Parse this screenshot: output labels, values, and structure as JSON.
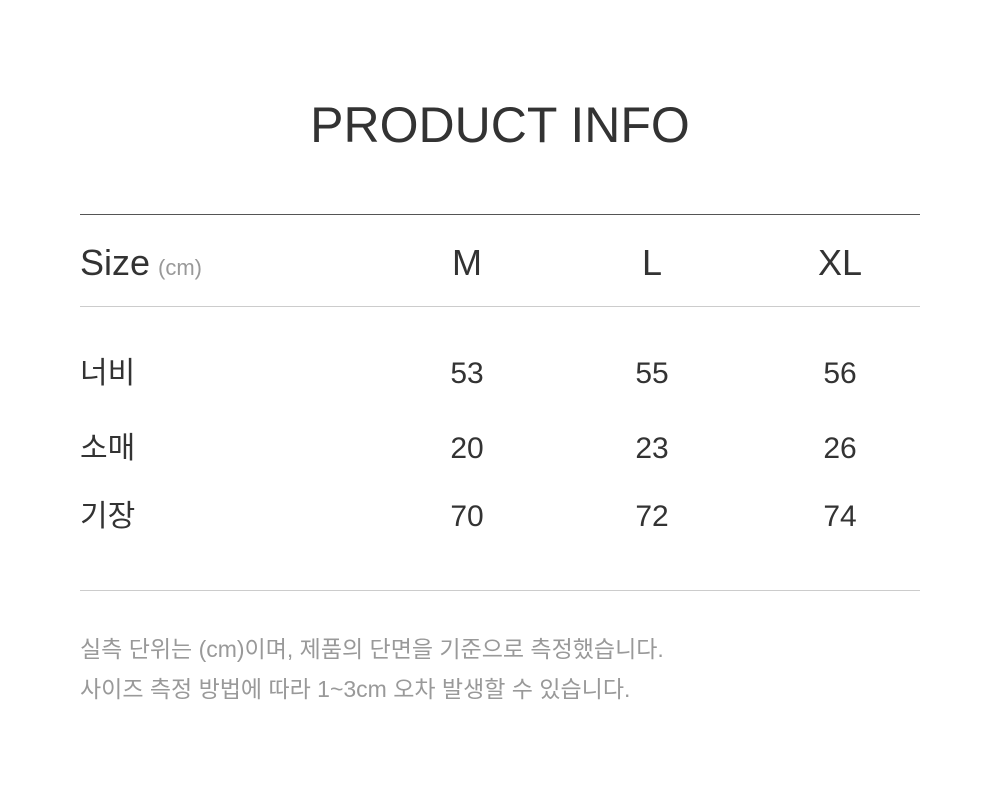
{
  "title": "PRODUCT INFO",
  "table": {
    "header": {
      "label": "Size",
      "unit": "(cm)",
      "sizes": [
        "M",
        "L",
        "XL"
      ]
    },
    "rows": [
      {
        "label": "너비",
        "values": [
          "53",
          "55",
          "56"
        ]
      },
      {
        "label": "소매",
        "values": [
          "20",
          "23",
          "26"
        ]
      },
      {
        "label": "기장",
        "values": [
          "70",
          "72",
          "74"
        ]
      }
    ]
  },
  "notes": [
    "실측 단위는 (cm)이며, 제품의 단면을 기준으로 측정했습니다.",
    "사이즈 측정 방법에 따라 1~3cm 오차 발생할 수 있습니다."
  ]
}
